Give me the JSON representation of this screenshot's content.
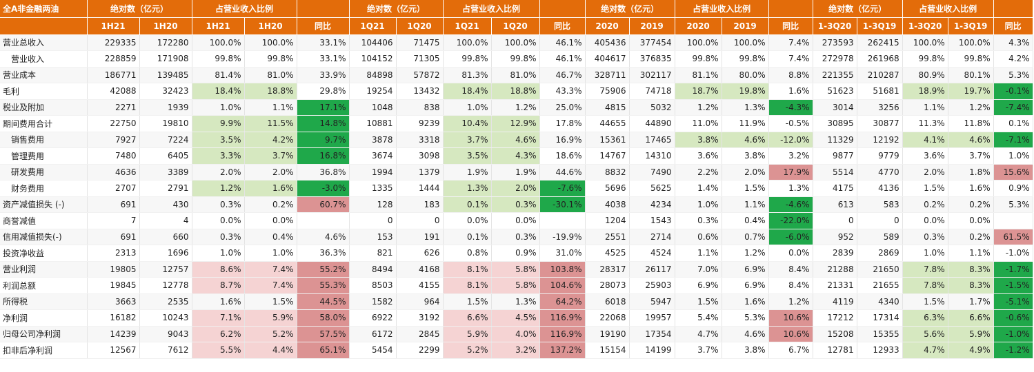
{
  "header1": [
    "全A非金融两油",
    "绝对数（亿元）",
    "",
    "占营业收入比例",
    "",
    "",
    "绝对数（亿元）",
    "",
    "占营业收入比例",
    "",
    "",
    "绝对数（亿元）",
    "",
    "占营业收入比例",
    "",
    "",
    "绝对数（亿元）",
    "",
    "占营业收入比例",
    "",
    ""
  ],
  "header2": [
    "",
    "1H21",
    "1H20",
    "1H21",
    "1H20",
    "同比",
    "1Q21",
    "1Q20",
    "1Q21",
    "1Q20",
    "同比",
    "2020",
    "2019",
    "2020",
    "2019",
    "同比",
    "1-3Q20",
    "1-3Q19",
    "1-3Q20",
    "1-3Q19",
    "同比"
  ],
  "colors": {
    "header": "#e36c0a",
    "light_green": "#d6e8c0",
    "dark_green": "#1fa84a",
    "light_pink": "#f5d3d3",
    "dark_pink": "#dc9393"
  },
  "rows": [
    {
      "label": "营业总收入",
      "sub": false,
      "cells": [
        "229335",
        "172280",
        "100.0%",
        "100.0%",
        "33.1%",
        "104406",
        "71475",
        "100.0%",
        "100.0%",
        "46.1%",
        "405436",
        "377454",
        "100.0%",
        "100.0%",
        "7.4%",
        "273593",
        "262415",
        "100.0%",
        "100.0%",
        "4.3%"
      ],
      "hl": [
        "",
        "",
        "",
        "",
        "",
        "",
        "",
        "",
        "",
        "",
        "",
        "",
        "",
        "",
        "",
        "",
        "",
        "",
        "",
        ""
      ]
    },
    {
      "label": "营业收入",
      "sub": true,
      "cells": [
        "228859",
        "171908",
        "99.8%",
        "99.8%",
        "33.1%",
        "104152",
        "71305",
        "99.8%",
        "99.8%",
        "46.1%",
        "404617",
        "376835",
        "99.8%",
        "99.8%",
        "7.4%",
        "272978",
        "261968",
        "99.8%",
        "99.8%",
        "4.2%"
      ],
      "hl": [
        "",
        "",
        "",
        "",
        "",
        "",
        "",
        "",
        "",
        "",
        "",
        "",
        "",
        "",
        "",
        "",
        "",
        "",
        "",
        ""
      ]
    },
    {
      "label": "营业成本",
      "sub": false,
      "cells": [
        "186771",
        "139485",
        "81.4%",
        "81.0%",
        "33.9%",
        "84898",
        "57872",
        "81.3%",
        "81.0%",
        "46.7%",
        "328711",
        "302117",
        "81.1%",
        "80.0%",
        "8.8%",
        "221355",
        "210287",
        "80.9%",
        "80.1%",
        "5.3%"
      ],
      "hl": [
        "",
        "",
        "",
        "",
        "",
        "",
        "",
        "",
        "",
        "",
        "",
        "",
        "",
        "",
        "",
        "",
        "",
        "",
        "",
        ""
      ]
    },
    {
      "label": "毛利",
      "sub": false,
      "cells": [
        "42088",
        "32423",
        "18.4%",
        "18.8%",
        "29.8%",
        "19254",
        "13432",
        "18.4%",
        "18.8%",
        "43.3%",
        "75906",
        "74718",
        "18.7%",
        "19.8%",
        "1.6%",
        "51623",
        "51681",
        "18.9%",
        "19.7%",
        "-0.1%"
      ],
      "hl": [
        "",
        "",
        "lg",
        "lg",
        "",
        "",
        "",
        "lg",
        "lg",
        "",
        "",
        "",
        "lg",
        "lg",
        "",
        "",
        "",
        "lg",
        "lg",
        "dg"
      ]
    },
    {
      "label": "税业及附加",
      "sub": false,
      "cells": [
        "2271",
        "1939",
        "1.0%",
        "1.1%",
        "17.1%",
        "1048",
        "838",
        "1.0%",
        "1.2%",
        "25.0%",
        "4815",
        "5032",
        "1.2%",
        "1.3%",
        "-4.3%",
        "3014",
        "3256",
        "1.1%",
        "1.2%",
        "-7.4%"
      ],
      "hl": [
        "",
        "",
        "",
        "",
        "dg",
        "",
        "",
        "",
        "",
        "",
        "",
        "",
        "",
        "",
        "dg",
        "",
        "",
        "",
        "",
        "dg"
      ]
    },
    {
      "label": "期间费用合计",
      "sub": false,
      "cells": [
        "22750",
        "19810",
        "9.9%",
        "11.5%",
        "14.8%",
        "10881",
        "9239",
        "10.4%",
        "12.9%",
        "17.8%",
        "44655",
        "44890",
        "11.0%",
        "11.9%",
        "-0.5%",
        "30895",
        "30877",
        "11.3%",
        "11.8%",
        "0.1%"
      ],
      "hl": [
        "",
        "",
        "lg",
        "lg",
        "dg",
        "",
        "",
        "lg",
        "lg",
        "",
        "",
        "",
        "",
        "",
        "",
        "",
        "",
        "",
        "",
        ""
      ]
    },
    {
      "label": "销售费用",
      "sub": true,
      "cells": [
        "7927",
        "7224",
        "3.5%",
        "4.2%",
        "9.7%",
        "3878",
        "3318",
        "3.7%",
        "4.6%",
        "16.9%",
        "15361",
        "17465",
        "3.8%",
        "4.6%",
        "-12.0%",
        "11329",
        "12192",
        "4.1%",
        "4.6%",
        "-7.1%"
      ],
      "hl": [
        "",
        "",
        "lg",
        "lg",
        "dg",
        "",
        "",
        "lg",
        "lg",
        "",
        "",
        "",
        "lg",
        "lg",
        "lg",
        "",
        "",
        "lg",
        "lg",
        "dg"
      ]
    },
    {
      "label": "管理费用",
      "sub": true,
      "cells": [
        "7480",
        "6405",
        "3.3%",
        "3.7%",
        "16.8%",
        "3674",
        "3098",
        "3.5%",
        "4.3%",
        "18.6%",
        "14767",
        "14310",
        "3.6%",
        "3.8%",
        "3.2%",
        "9877",
        "9779",
        "3.6%",
        "3.7%",
        "1.0%"
      ],
      "hl": [
        "",
        "",
        "lg",
        "lg",
        "dg",
        "",
        "",
        "lg",
        "lg",
        "",
        "",
        "",
        "",
        "",
        "",
        "",
        "",
        "",
        "",
        ""
      ]
    },
    {
      "label": "研发费用",
      "sub": true,
      "cells": [
        "4636",
        "3389",
        "2.0%",
        "2.0%",
        "36.8%",
        "1994",
        "1379",
        "1.9%",
        "1.9%",
        "44.6%",
        "8832",
        "7490",
        "2.2%",
        "2.0%",
        "17.9%",
        "5514",
        "4770",
        "2.0%",
        "1.8%",
        "15.6%"
      ],
      "hl": [
        "",
        "",
        "",
        "",
        "",
        "",
        "",
        "",
        "",
        "",
        "",
        "",
        "",
        "",
        "dp",
        "",
        "",
        "",
        "",
        "dp"
      ]
    },
    {
      "label": "财务费用",
      "sub": true,
      "cells": [
        "2707",
        "2791",
        "1.2%",
        "1.6%",
        "-3.0%",
        "1335",
        "1444",
        "1.3%",
        "2.0%",
        "-7.6%",
        "5696",
        "5625",
        "1.4%",
        "1.5%",
        "1.3%",
        "4175",
        "4136",
        "1.5%",
        "1.6%",
        "0.9%"
      ],
      "hl": [
        "",
        "",
        "lg",
        "lg",
        "dg",
        "",
        "",
        "lg",
        "lg",
        "dg",
        "",
        "",
        "",
        "",
        "",
        "",
        "",
        "",
        "",
        ""
      ]
    },
    {
      "label": "资产减值损失 (-)",
      "sub": false,
      "cells": [
        "691",
        "430",
        "0.3%",
        "0.2%",
        "60.7%",
        "128",
        "183",
        "0.1%",
        "0.3%",
        "-30.1%",
        "4038",
        "4234",
        "1.0%",
        "1.1%",
        "-4.6%",
        "613",
        "583",
        "0.2%",
        "0.2%",
        "5.3%"
      ],
      "hl": [
        "",
        "",
        "",
        "",
        "dp",
        "",
        "",
        "lg",
        "lg",
        "dg",
        "",
        "",
        "",
        "",
        "dg",
        "",
        "",
        "",
        "",
        ""
      ]
    },
    {
      "label": "商誉减值",
      "sub": false,
      "cells": [
        "7",
        "4",
        "0.0%",
        "0.0%",
        "",
        "0",
        "0",
        "0.0%",
        "0.0%",
        "",
        "1204",
        "1543",
        "0.3%",
        "0.4%",
        "-22.0%",
        "0",
        "0",
        "0.0%",
        "0.0%",
        ""
      ],
      "hl": [
        "",
        "",
        "",
        "",
        "",
        "",
        "",
        "",
        "",
        "",
        "",
        "",
        "",
        "",
        "dg",
        "",
        "",
        "",
        "",
        ""
      ]
    },
    {
      "label": "信用减值损失(-)",
      "sub": false,
      "cells": [
        "691",
        "660",
        "0.3%",
        "0.4%",
        "4.6%",
        "153",
        "191",
        "0.1%",
        "0.3%",
        "-19.9%",
        "2551",
        "2714",
        "0.6%",
        "0.7%",
        "-6.0%",
        "952",
        "589",
        "0.3%",
        "0.2%",
        "61.5%"
      ],
      "hl": [
        "",
        "",
        "",
        "",
        "",
        "",
        "",
        "",
        "",
        "",
        "",
        "",
        "",
        "",
        "dg",
        "",
        "",
        "",
        "",
        "dp"
      ]
    },
    {
      "label": "投资净收益",
      "sub": false,
      "cells": [
        "2313",
        "1696",
        "1.0%",
        "1.0%",
        "36.3%",
        "821",
        "626",
        "0.8%",
        "0.9%",
        "31.0%",
        "4525",
        "4524",
        "1.1%",
        "1.2%",
        "0.0%",
        "2839",
        "2869",
        "1.0%",
        "1.1%",
        "-1.0%"
      ],
      "hl": [
        "",
        "",
        "",
        "",
        "",
        "",
        "",
        "",
        "",
        "",
        "",
        "",
        "",
        "",
        "",
        "",
        "",
        "",
        "",
        ""
      ]
    },
    {
      "label": "营业利润",
      "sub": false,
      "cells": [
        "19805",
        "12757",
        "8.6%",
        "7.4%",
        "55.2%",
        "8494",
        "4168",
        "8.1%",
        "5.8%",
        "103.8%",
        "28317",
        "26117",
        "7.0%",
        "6.9%",
        "8.4%",
        "21288",
        "21650",
        "7.8%",
        "8.3%",
        "-1.7%"
      ],
      "hl": [
        "",
        "",
        "pk",
        "pk",
        "dp",
        "",
        "",
        "pk",
        "pk",
        "dp",
        "",
        "",
        "",
        "",
        "",
        "",
        "",
        "lg",
        "lg",
        "dg"
      ]
    },
    {
      "label": "利润总额",
      "sub": false,
      "cells": [
        "19845",
        "12778",
        "8.7%",
        "7.4%",
        "55.3%",
        "8503",
        "4155",
        "8.1%",
        "5.8%",
        "104.6%",
        "28073",
        "25903",
        "6.9%",
        "6.9%",
        "8.4%",
        "21331",
        "21655",
        "7.8%",
        "8.3%",
        "-1.5%"
      ],
      "hl": [
        "",
        "",
        "pk",
        "pk",
        "dp",
        "",
        "",
        "pk",
        "pk",
        "dp",
        "",
        "",
        "",
        "",
        "",
        "",
        "",
        "lg",
        "lg",
        "dg"
      ]
    },
    {
      "label": "所得税",
      "sub": false,
      "cells": [
        "3663",
        "2535",
        "1.6%",
        "1.5%",
        "44.5%",
        "1582",
        "964",
        "1.5%",
        "1.3%",
        "64.2%",
        "6018",
        "5947",
        "1.5%",
        "1.6%",
        "1.2%",
        "4119",
        "4340",
        "1.5%",
        "1.7%",
        "-5.1%"
      ],
      "hl": [
        "",
        "",
        "",
        "",
        "dp",
        "",
        "",
        "",
        "",
        "dp",
        "",
        "",
        "",
        "",
        "",
        "",
        "",
        "",
        "",
        "dg"
      ]
    },
    {
      "label": "净利润",
      "sub": false,
      "cells": [
        "16182",
        "10243",
        "7.1%",
        "5.9%",
        "58.0%",
        "6922",
        "3192",
        "6.6%",
        "4.5%",
        "116.9%",
        "22068",
        "19957",
        "5.4%",
        "5.3%",
        "10.6%",
        "17212",
        "17314",
        "6.3%",
        "6.6%",
        "-0.6%"
      ],
      "hl": [
        "",
        "",
        "pk",
        "pk",
        "dp",
        "",
        "",
        "pk",
        "pk",
        "dp",
        "",
        "",
        "",
        "",
        "dp",
        "",
        "",
        "lg",
        "lg",
        "dg"
      ]
    },
    {
      "label": "归母公司净利润",
      "sub": false,
      "cells": [
        "14239",
        "9043",
        "6.2%",
        "5.2%",
        "57.5%",
        "6172",
        "2845",
        "5.9%",
        "4.0%",
        "116.9%",
        "19190",
        "17354",
        "4.7%",
        "4.6%",
        "10.6%",
        "15208",
        "15355",
        "5.6%",
        "5.9%",
        "-1.0%"
      ],
      "hl": [
        "",
        "",
        "pk",
        "pk",
        "dp",
        "",
        "",
        "pk",
        "pk",
        "dp",
        "",
        "",
        "",
        "",
        "dp",
        "",
        "",
        "lg",
        "lg",
        "dg"
      ]
    },
    {
      "label": "扣非后净利润",
      "sub": false,
      "cells": [
        "12567",
        "7612",
        "5.5%",
        "4.4%",
        "65.1%",
        "5454",
        "2299",
        "5.2%",
        "3.2%",
        "137.2%",
        "15154",
        "14199",
        "3.7%",
        "3.8%",
        "6.7%",
        "12781",
        "12933",
        "4.7%",
        "4.9%",
        "-1.2%"
      ],
      "hl": [
        "",
        "",
        "pk",
        "pk",
        "dp",
        "",
        "",
        "pk",
        "pk",
        "dp",
        "",
        "",
        "",
        "",
        "",
        "",
        "",
        "lg",
        "lg",
        "dg"
      ]
    }
  ]
}
